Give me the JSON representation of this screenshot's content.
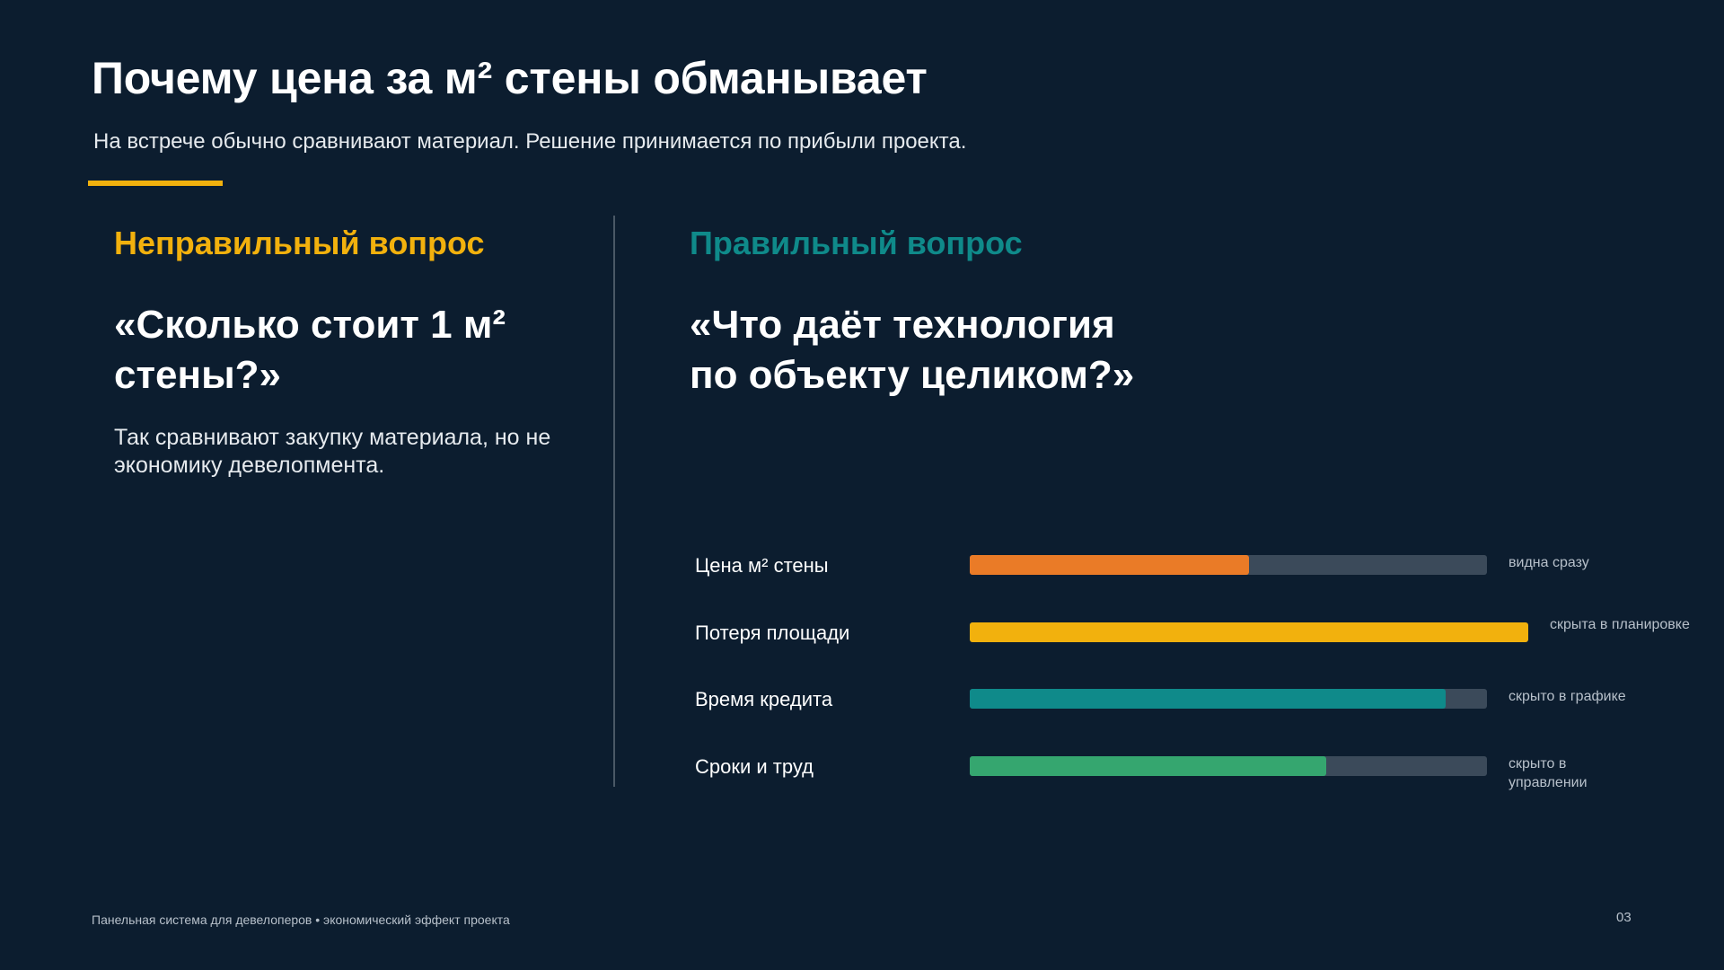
{
  "slide": {
    "title": "Почему цена за м² стены обманывает",
    "subtitle": "На встрече обычно сравнивают материал. Решение принимается по прибыли проекта.",
    "accent_color": "#f2b10d",
    "background_color": "#0c1d2f"
  },
  "left_column": {
    "heading": "Неправильный вопрос",
    "heading_color": "#f2b10d",
    "question": "«Сколько стоит 1 м²\nстены?»",
    "description": "Так сравнивают закупку материала, но не\nэкономику девелопмента."
  },
  "right_column": {
    "heading": "Правильный вопрос",
    "heading_color": "#0f8a8a",
    "question": "«Что даёт технология\nпо объекту целиком?»"
  },
  "chart_data": {
    "type": "bar",
    "orientation": "horizontal",
    "categories": [
      "Цена м² стены",
      "Потеря площади",
      "Время кредита",
      "Сроки и труд"
    ],
    "values": [
      0.54,
      1.08,
      0.92,
      0.69
    ],
    "value_units": "fraction of track length",
    "notes": [
      "видна сразу",
      "скрыта в планировке",
      "скрыто в графике",
      "скрыто в\nуправлении"
    ],
    "colors": [
      "#ea7b27",
      "#f2b10d",
      "#0f8a8a",
      "#35a66f"
    ],
    "track_color": "#3b4a5a",
    "grid": false
  },
  "footer": {
    "text": "Панельная  система для девелоперов • экономический  эффект  проекта",
    "page_number": "03"
  }
}
